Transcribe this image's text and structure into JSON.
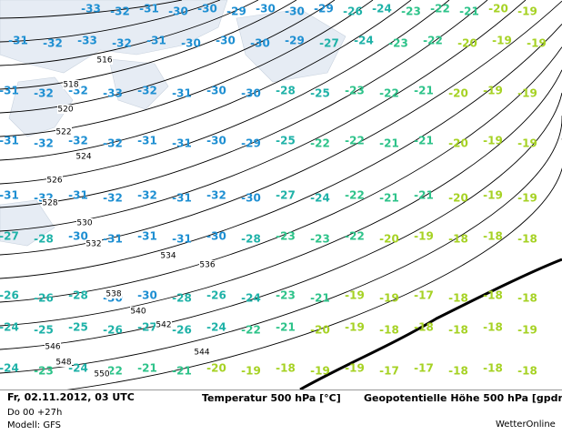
{
  "map": {
    "temperature_rows": [
      [
        -33,
        -32,
        -31,
        -30,
        -30,
        -29,
        -30,
        -30,
        -29,
        -26,
        -24,
        -23,
        -22,
        -21,
        -20,
        -19
      ],
      [
        -31,
        -32,
        -33,
        -32,
        -31,
        -30,
        -30,
        -30,
        -29,
        -27,
        -24,
        -23,
        -22,
        -20,
        -19,
        -19
      ],
      [
        -31,
        -32,
        -32,
        -33,
        -32,
        -31,
        -30,
        -30,
        -28,
        -25,
        -23,
        -22,
        -21,
        -20,
        -19,
        -19
      ],
      [
        -31,
        -32,
        -32,
        -32,
        -31,
        -31,
        -30,
        -29,
        -25,
        -22,
        -22,
        -21,
        -21,
        -20,
        -19,
        -19
      ],
      [
        -31,
        -32,
        -31,
        -32,
        -32,
        -31,
        -32,
        -30,
        -27,
        -24,
        -22,
        -21,
        -21,
        -20,
        -19,
        -19
      ],
      [
        -27,
        -28,
        -30,
        -31,
        -31,
        -31,
        -30,
        -28,
        -23,
        -23,
        -22,
        -20,
        -19,
        -18,
        -18,
        -18
      ],
      [
        -26,
        -26,
        -28,
        -30,
        -30,
        -28,
        -26,
        -24,
        -23,
        -21,
        -19,
        -19,
        -17,
        -18,
        -18,
        -18
      ],
      [
        -24,
        -25,
        -25,
        -26,
        -27,
        -26,
        -24,
        -22,
        -21,
        -20,
        -19,
        -18,
        -18,
        -18,
        -18,
        -19
      ],
      [
        -24,
        -23,
        -24,
        -22,
        -21,
        -21,
        -20,
        -19,
        -18,
        -19,
        -19,
        -17,
        -17,
        -18,
        -18,
        -18
      ]
    ],
    "height_labels": [
      516,
      518,
      520,
      522,
      524,
      526,
      528,
      530,
      532,
      534,
      536,
      538,
      540,
      542,
      544,
      546,
      548,
      550
    ]
  },
  "footer": {
    "date": "Fr, 02.11.2012, 03 UTC",
    "run": "Do 00 +27h",
    "model": "Modell: GFS",
    "legend_temperature": "Temperatur 500 hPa [°C]",
    "legend_height": "Geopotentielle Höhe 500 hPa [gpdm]",
    "brand": "WetterOnline"
  }
}
